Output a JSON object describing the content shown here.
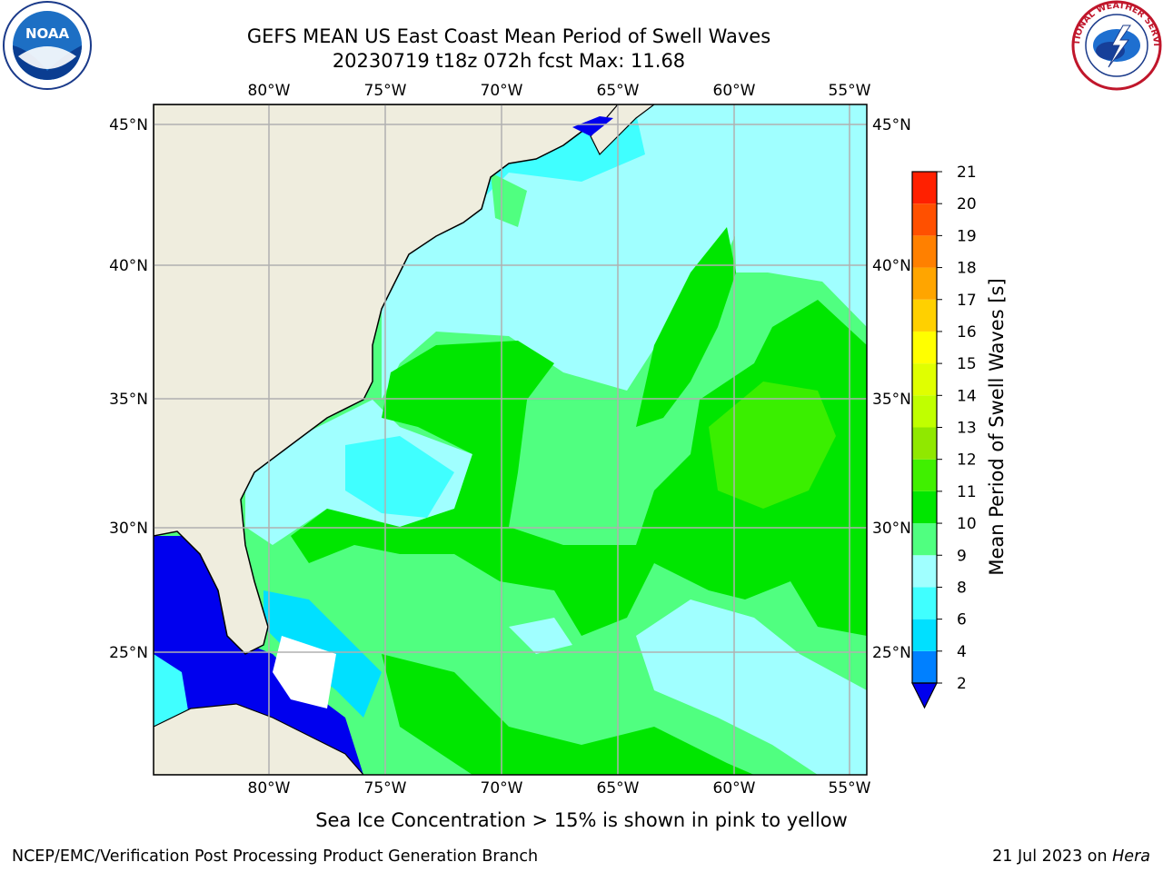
{
  "title_line1": "GEFS MEAN US East Coast Mean Period of Swell Waves",
  "title_line2": "20230719 t18z 072h fcst   Max: 11.68",
  "logos": {
    "left": "NOAA",
    "right": "NATIONAL WEATHER SERVICE"
  },
  "map": {
    "lon_ticks": [
      "80°W",
      "75°W",
      "70°W",
      "65°W",
      "60°W",
      "55°W"
    ],
    "lat_ticks": [
      "45°N",
      "40°N",
      "35°N",
      "30°N",
      "25°N"
    ],
    "land_color": "#efedde",
    "grid_color": "#b0b0b0"
  },
  "colorbar": {
    "label": "Mean Period of Swell Waves [s]",
    "ticks": [
      "2",
      "4",
      "6",
      "8",
      "9",
      "10",
      "11",
      "12",
      "13",
      "14",
      "15",
      "16",
      "17",
      "18",
      "19",
      "20",
      "21"
    ],
    "colors": [
      "#0000ee",
      "#0080ff",
      "#00e0ff",
      "#40ffff",
      "#a0ffff",
      "#50ff80",
      "#00e600",
      "#40f000",
      "#90e800",
      "#c0ff00",
      "#e0ff00",
      "#ffff00",
      "#ffd000",
      "#ffa500",
      "#ff8000",
      "#ff5000",
      "#ff2000",
      "#ff0000"
    ],
    "extend": "min"
  },
  "footer_note": "Sea Ice Concentration > 15% is shown in pink to yellow",
  "credit_left": "NCEP/EMC/Verification Post Processing Product Generation Branch",
  "credit_right_date": "21 Jul 2023 on ",
  "credit_right_host": "Hera"
}
